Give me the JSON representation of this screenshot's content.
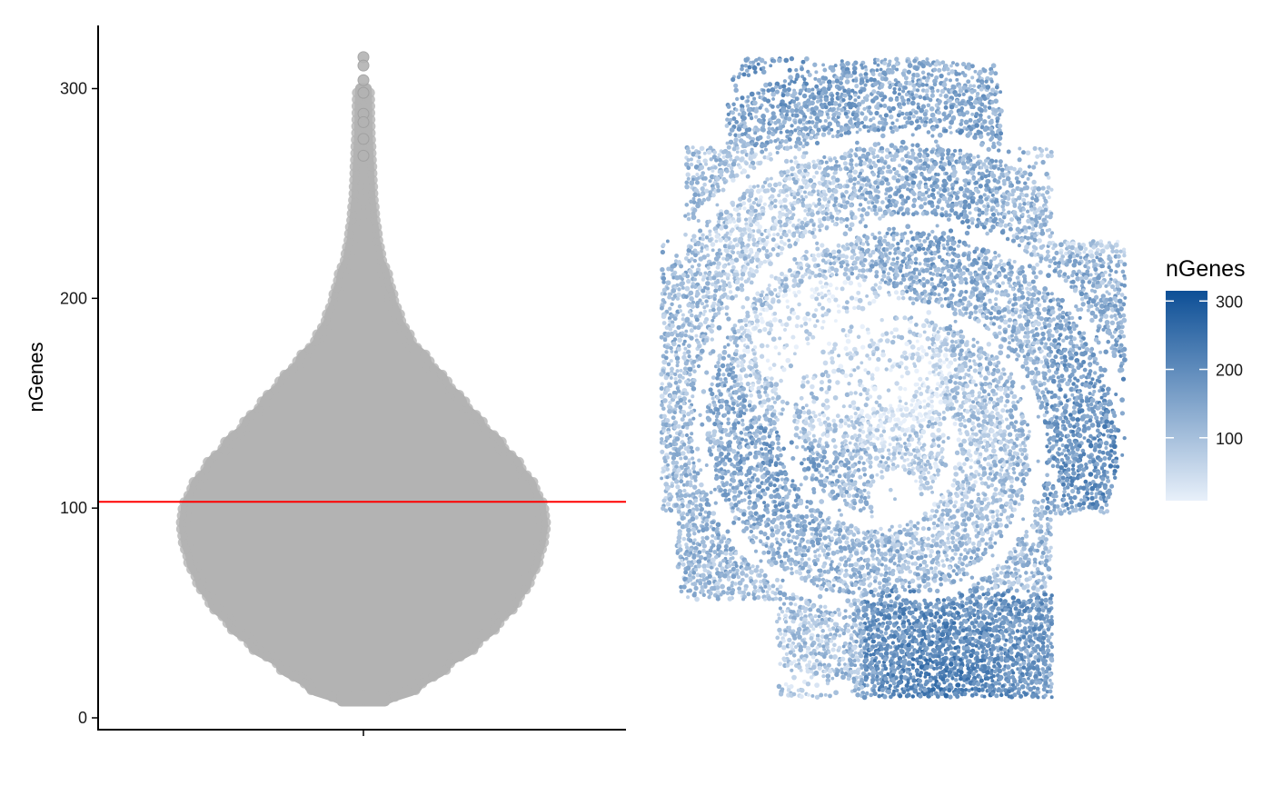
{
  "chart_data": [
    {
      "type": "violin",
      "ylabel": "nGenes",
      "xlabel": "",
      "ylim": [
        -5,
        332
      ],
      "yticks": [
        0,
        100,
        200,
        300
      ],
      "fill_color": "#b3b3b3",
      "threshold": {
        "value": 103,
        "color": "#ff0000"
      },
      "distribution": {
        "min": 8,
        "max": 315,
        "density_profile": [
          [
            8,
            0.12
          ],
          [
            15,
            0.3
          ],
          [
            25,
            0.46
          ],
          [
            35,
            0.62
          ],
          [
            45,
            0.74
          ],
          [
            55,
            0.84
          ],
          [
            65,
            0.91
          ],
          [
            75,
            0.96
          ],
          [
            85,
            0.99
          ],
          [
            92,
            1.0
          ],
          [
            100,
            0.99
          ],
          [
            110,
            0.94
          ],
          [
            120,
            0.86
          ],
          [
            130,
            0.76
          ],
          [
            140,
            0.65
          ],
          [
            150,
            0.55
          ],
          [
            160,
            0.45
          ],
          [
            170,
            0.35
          ],
          [
            180,
            0.25
          ],
          [
            190,
            0.19
          ],
          [
            200,
            0.15
          ],
          [
            210,
            0.12
          ],
          [
            220,
            0.08
          ],
          [
            230,
            0.06
          ],
          [
            240,
            0.045
          ],
          [
            250,
            0.035
          ],
          [
            260,
            0.03
          ],
          [
            270,
            0.025
          ],
          [
            280,
            0.02
          ],
          [
            290,
            0.018
          ],
          [
            300,
            0.016
          ],
          [
            315,
            0.014
          ]
        ],
        "outliers": [
          315,
          311,
          304,
          298,
          288,
          284,
          276,
          268
        ]
      }
    },
    {
      "type": "heatmap",
      "legend_title": "nGenes",
      "legend_ticks": [
        100,
        200,
        300
      ],
      "color_range": [
        8,
        315
      ],
      "color_low": "#e8f0fa",
      "color_high": "#0d4f96"
    }
  ]
}
